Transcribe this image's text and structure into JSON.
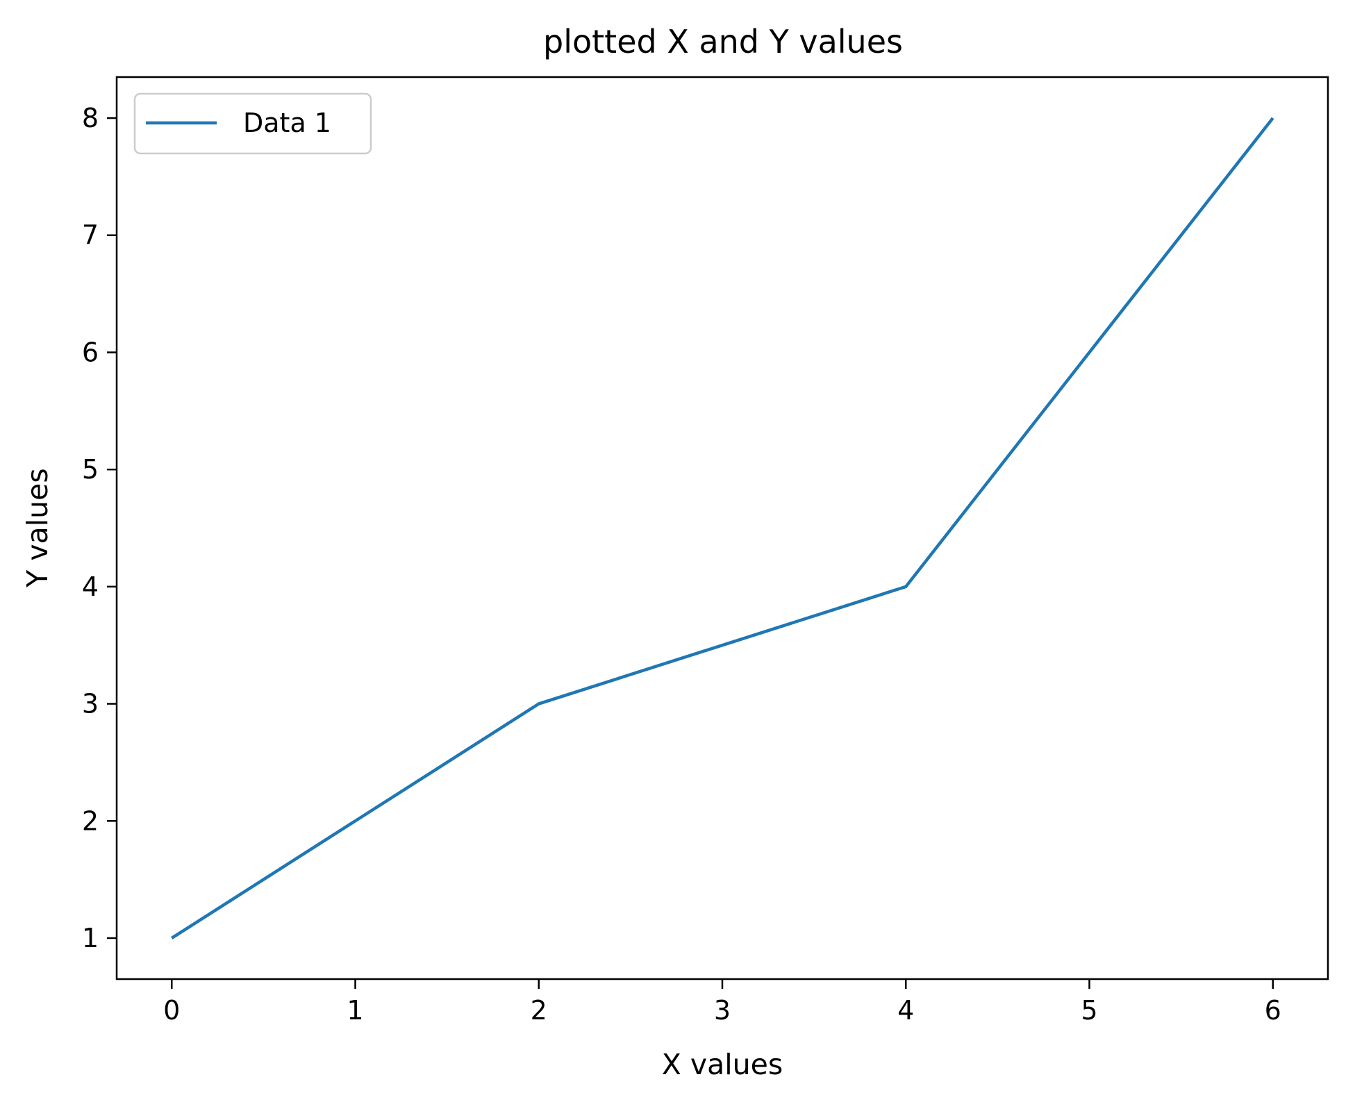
{
  "chart_data": {
    "type": "line",
    "title": "plotted X and Y values",
    "xlabel": "X values",
    "ylabel": "Y values",
    "xlim": [
      -0.3,
      6.3
    ],
    "ylim": [
      0.65,
      8.35
    ],
    "xticks": [
      0,
      1,
      2,
      3,
      4,
      5,
      6
    ],
    "yticks": [
      1,
      2,
      3,
      4,
      5,
      6,
      7,
      8
    ],
    "grid": false,
    "legend_position": "top-left",
    "series": [
      {
        "name": "Data 1",
        "color": "#1f77b4",
        "x": [
          0,
          2,
          4,
          6
        ],
        "y": [
          1,
          3,
          4,
          8
        ]
      }
    ]
  }
}
